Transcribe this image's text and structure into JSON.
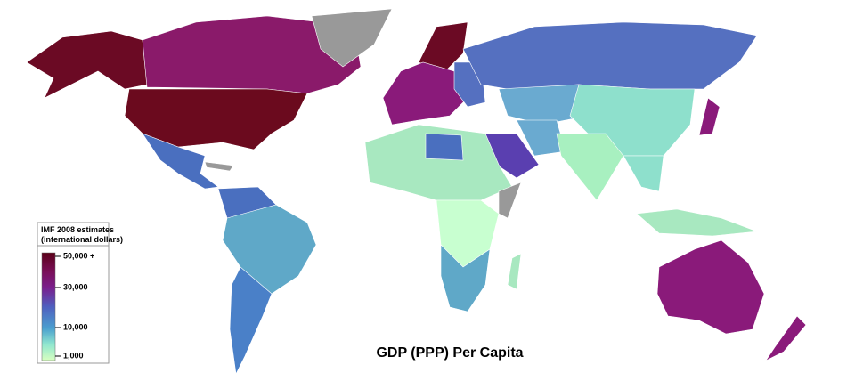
{
  "map": {
    "title": "GDP (PPP) Per Capita",
    "legend": {
      "title_lines": [
        "IMF 2008 estimates",
        "(international dollars)"
      ],
      "ticks": [
        "50,000 +",
        "30,000",
        "10,000",
        "1,000"
      ]
    }
  }
}
